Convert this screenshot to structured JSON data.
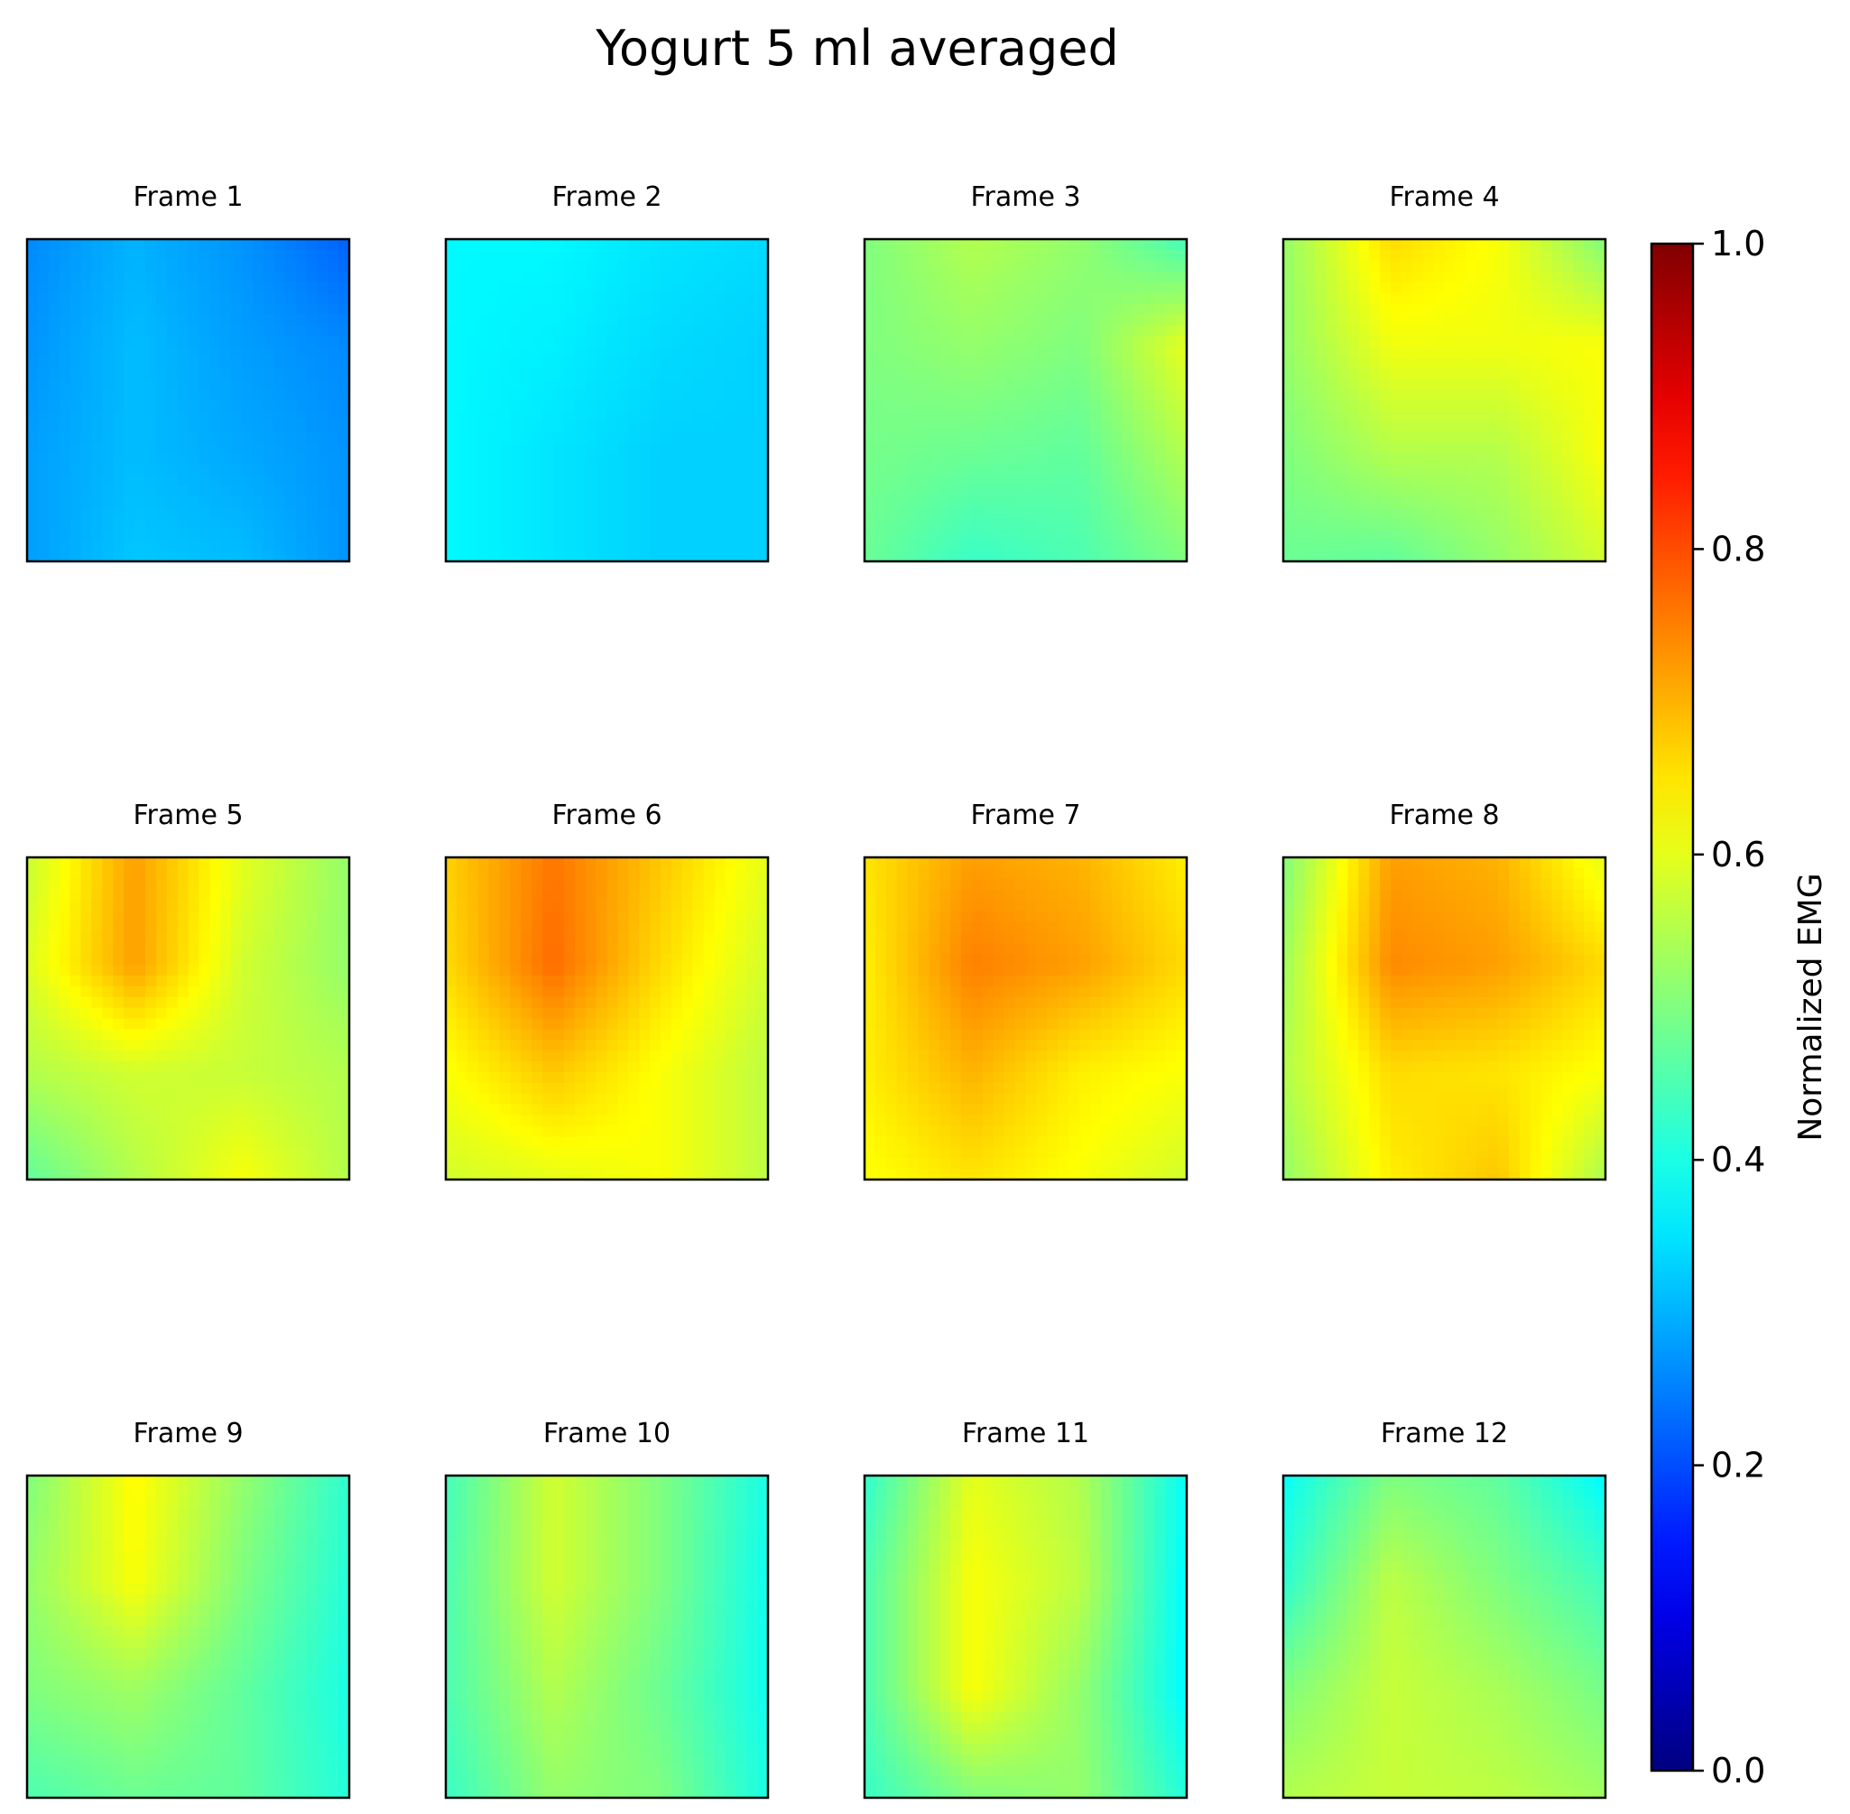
{
  "chart_data": {
    "type": "heatmap",
    "title": "Yogurt 5 ml averaged",
    "colormap": "jet",
    "colorbar": {
      "label": "Normalized EMG",
      "range": [
        0,
        1
      ],
      "ticks": [
        "0.0",
        "0.2",
        "0.4",
        "0.6",
        "0.8",
        "1.0"
      ]
    },
    "grid": "off",
    "layout": {
      "rows": 3,
      "cols": 4
    },
    "frames": [
      {
        "title": "Frame 1",
        "values": [
          [
            0.26,
            0.3,
            0.27,
            0.22
          ],
          [
            0.27,
            0.31,
            0.28,
            0.26
          ],
          [
            0.28,
            0.31,
            0.29,
            0.27
          ],
          [
            0.28,
            0.32,
            0.31,
            0.27
          ]
        ]
      },
      {
        "title": "Frame 2",
        "values": [
          [
            0.37,
            0.37,
            0.35,
            0.34
          ],
          [
            0.37,
            0.36,
            0.34,
            0.33
          ],
          [
            0.37,
            0.35,
            0.33,
            0.33
          ],
          [
            0.37,
            0.35,
            0.33,
            0.33
          ]
        ]
      },
      {
        "title": "Frame 3",
        "values": [
          [
            0.5,
            0.55,
            0.52,
            0.44
          ],
          [
            0.5,
            0.52,
            0.5,
            0.6
          ],
          [
            0.49,
            0.48,
            0.47,
            0.55
          ],
          [
            0.48,
            0.43,
            0.45,
            0.5
          ]
        ]
      },
      {
        "title": "Frame 4",
        "values": [
          [
            0.52,
            0.66,
            0.62,
            0.5
          ],
          [
            0.52,
            0.61,
            0.61,
            0.62
          ],
          [
            0.5,
            0.55,
            0.55,
            0.62
          ],
          [
            0.48,
            0.47,
            0.52,
            0.58
          ]
        ]
      },
      {
        "title": "Frame 5",
        "values": [
          [
            0.57,
            0.72,
            0.6,
            0.52
          ],
          [
            0.59,
            0.72,
            0.58,
            0.52
          ],
          [
            0.55,
            0.58,
            0.57,
            0.55
          ],
          [
            0.47,
            0.55,
            0.62,
            0.55
          ]
        ]
      },
      {
        "title": "Frame 6",
        "values": [
          [
            0.67,
            0.76,
            0.68,
            0.6
          ],
          [
            0.66,
            0.77,
            0.66,
            0.58
          ],
          [
            0.62,
            0.68,
            0.62,
            0.56
          ],
          [
            0.58,
            0.6,
            0.62,
            0.56
          ]
        ]
      },
      {
        "title": "Frame 7",
        "values": [
          [
            0.65,
            0.72,
            0.7,
            0.64
          ],
          [
            0.64,
            0.75,
            0.72,
            0.66
          ],
          [
            0.64,
            0.7,
            0.64,
            0.62
          ],
          [
            0.62,
            0.65,
            0.62,
            0.58
          ]
        ]
      },
      {
        "title": "Frame 8",
        "values": [
          [
            0.5,
            0.72,
            0.7,
            0.6
          ],
          [
            0.53,
            0.74,
            0.72,
            0.66
          ],
          [
            0.55,
            0.66,
            0.65,
            0.62
          ],
          [
            0.52,
            0.64,
            0.68,
            0.54
          ]
        ]
      },
      {
        "title": "Frame 9",
        "values": [
          [
            0.5,
            0.63,
            0.52,
            0.42
          ],
          [
            0.52,
            0.62,
            0.5,
            0.41
          ],
          [
            0.5,
            0.53,
            0.47,
            0.4
          ],
          [
            0.45,
            0.48,
            0.47,
            0.41
          ]
        ]
      },
      {
        "title": "Frame 10",
        "values": [
          [
            0.44,
            0.58,
            0.5,
            0.4
          ],
          [
            0.45,
            0.58,
            0.5,
            0.39
          ],
          [
            0.45,
            0.55,
            0.48,
            0.39
          ],
          [
            0.43,
            0.52,
            0.5,
            0.4
          ]
        ]
      },
      {
        "title": "Frame 11",
        "values": [
          [
            0.42,
            0.6,
            0.55,
            0.38
          ],
          [
            0.45,
            0.62,
            0.56,
            0.37
          ],
          [
            0.45,
            0.62,
            0.52,
            0.37
          ],
          [
            0.43,
            0.5,
            0.52,
            0.41
          ]
        ]
      },
      {
        "title": "Frame 12",
        "values": [
          [
            0.38,
            0.5,
            0.47,
            0.37
          ],
          [
            0.42,
            0.56,
            0.5,
            0.44
          ],
          [
            0.5,
            0.57,
            0.54,
            0.49
          ],
          [
            0.55,
            0.57,
            0.56,
            0.53
          ]
        ]
      }
    ]
  }
}
